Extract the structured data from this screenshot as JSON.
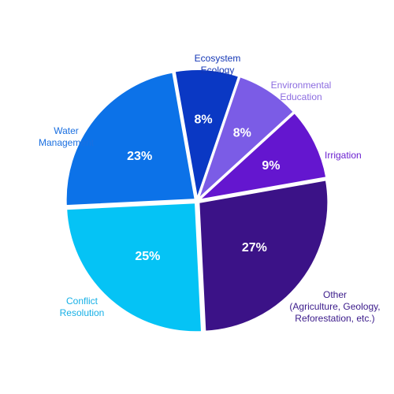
{
  "chart_data": {
    "type": "pie",
    "title": "",
    "slices": [
      {
        "label": "Ecosystem Ecology",
        "value": 8,
        "display": "8%",
        "color": "#0a38c4"
      },
      {
        "label": "Environmental Education",
        "value": 8,
        "display": "8%",
        "color": "#7b5ce6"
      },
      {
        "label": "Irrigation",
        "value": 9,
        "display": "9%",
        "color": "#6416cf"
      },
      {
        "label": "Other (Agriculture, Geology, Reforestation, etc.)",
        "value": 27,
        "display": "27%",
        "color": "#3b1287"
      },
      {
        "label": "Conflict Resolution",
        "value": 25,
        "display": "25%",
        "color": "#05c3f5"
      },
      {
        "label": "Water Management",
        "value": 23,
        "display": "23%",
        "color": "#0c72e8"
      }
    ],
    "label_colors": {
      "Ecosystem Ecology": "#1336b5",
      "Environmental Education": "#8c6ce0",
      "Irrigation": "#6a1fd0",
      "Other (Agriculture, Geology, Reforestation, etc.)": "#3a1a8a",
      "Conflict Resolution": "#16b0e6",
      "Water Management": "#1a6fe0"
    },
    "label_lines": {
      "Ecosystem Ecology": [
        "Ecosystem",
        "Ecology"
      ],
      "Environmental Education": [
        "Environmental",
        "Education"
      ],
      "Irrigation": [
        "Irrigation"
      ],
      "Other (Agriculture, Geology, Reforestation, etc.)": [
        "Other",
        "(Agriculture, Geology,",
        "Reforestation, etc.)"
      ],
      "Conflict Resolution": [
        "Conflict",
        "Resolution"
      ],
      "Water Management": [
        "Water",
        "Management"
      ]
    }
  }
}
